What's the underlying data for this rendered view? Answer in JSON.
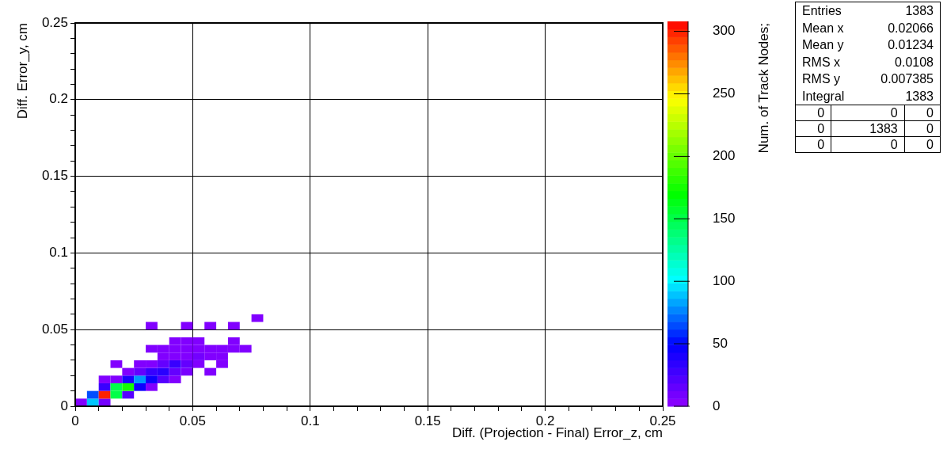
{
  "chart_data": {
    "type": "scatter",
    "xlabel": "Diff. (Projection - Final) Error_z, cm",
    "ylabel": "Diff. Error_y, cm",
    "clabel": "Num. of Track Nodes;",
    "marker": "square",
    "x": [
      0.0025,
      0.0075,
      0.0125,
      0.0075,
      0.0125,
      0.0175,
      0.0225,
      0.0125,
      0.0175,
      0.0225,
      0.0275,
      0.0325,
      0.0125,
      0.0175,
      0.0225,
      0.0275,
      0.0325,
      0.0375,
      0.0425,
      0.0225,
      0.0275,
      0.0325,
      0.0375,
      0.0425,
      0.0475,
      0.0575,
      0.0175,
      0.0275,
      0.0325,
      0.0375,
      0.0425,
      0.0475,
      0.0525,
      0.0625,
      0.0375,
      0.0425,
      0.0475,
      0.0525,
      0.0575,
      0.0625,
      0.0325,
      0.0375,
      0.0425,
      0.0475,
      0.0525,
      0.0575,
      0.0625,
      0.0675,
      0.0725,
      0.0425,
      0.0475,
      0.0525,
      0.0675,
      0.0325,
      0.0475,
      0.0575,
      0.0675,
      0.0775
    ],
    "values": [
      0.0025,
      0.0025,
      0.0025,
      0.0075,
      0.0075,
      0.0075,
      0.0075,
      0.0125,
      0.0125,
      0.0125,
      0.0125,
      0.0125,
      0.0175,
      0.0175,
      0.0175,
      0.0175,
      0.0175,
      0.0175,
      0.0175,
      0.0225,
      0.0225,
      0.0225,
      0.0225,
      0.0225,
      0.0225,
      0.0225,
      0.0275,
      0.0275,
      0.0275,
      0.0275,
      0.0275,
      0.0275,
      0.0275,
      0.0275,
      0.0325,
      0.0325,
      0.0325,
      0.0325,
      0.0325,
      0.0325,
      0.0375,
      0.0375,
      0.0375,
      0.0375,
      0.0375,
      0.0375,
      0.0375,
      0.0375,
      0.0375,
      0.0425,
      0.0425,
      0.0425,
      0.0425,
      0.0525,
      0.0525,
      0.0525,
      0.0525,
      0.0575
    ],
    "cvalues": [
      5,
      90,
      10,
      65,
      300,
      150,
      20,
      30,
      150,
      175,
      45,
      5,
      5,
      5,
      40,
      80,
      45,
      20,
      5,
      5,
      15,
      30,
      35,
      15,
      8,
      5,
      5,
      5,
      5,
      15,
      30,
      15,
      5,
      5,
      5,
      5,
      5,
      10,
      5,
      5,
      5,
      5,
      5,
      5,
      5,
      5,
      5,
      5,
      5,
      5,
      5,
      5,
      5,
      5,
      5,
      5,
      5,
      5
    ],
    "xlim": [
      0,
      0.25
    ],
    "ylim": [
      0,
      0.25
    ],
    "xticks": [
      0,
      {
        "value": 0.01,
        "label": null
      },
      {
        "value": 0.02,
        "label": null
      },
      {
        "value": 0.03,
        "label": null
      },
      {
        "value": 0.04,
        "label": null
      },
      0.05,
      {
        "value": 0.06,
        "label": null
      },
      {
        "value": 0.07,
        "label": null
      },
      {
        "value": 0.08,
        "label": null
      },
      {
        "value": 0.09,
        "label": null
      },
      0.1,
      {
        "value": 0.11,
        "label": null
      },
      {
        "value": 0.12,
        "label": null
      },
      {
        "value": 0.13,
        "label": null
      },
      {
        "value": 0.14,
        "label": null
      },
      0.15,
      {
        "value": 0.16,
        "label": null
      },
      {
        "value": 0.17,
        "label": null
      },
      {
        "value": 0.18,
        "label": null
      },
      {
        "value": 0.19,
        "label": null
      },
      0.2,
      {
        "value": 0.21,
        "label": null
      },
      {
        "value": 0.22,
        "label": null
      },
      {
        "value": 0.23,
        "label": null
      },
      {
        "value": 0.24,
        "label": null
      },
      0.25
    ],
    "yticks": [
      0,
      {
        "value": 0.01,
        "label": null
      },
      {
        "value": 0.02,
        "label": null
      },
      {
        "value": 0.03,
        "label": null
      },
      {
        "value": 0.04,
        "label": null
      },
      0.05,
      {
        "value": 0.06,
        "label": null
      },
      {
        "value": 0.07,
        "label": null
      },
      {
        "value": 0.08,
        "label": null
      },
      {
        "value": 0.09,
        "label": null
      },
      0.1,
      {
        "value": 0.11,
        "label": null
      },
      {
        "value": 0.12,
        "label": null
      },
      {
        "value": 0.13,
        "label": null
      },
      {
        "value": 0.14,
        "label": null
      },
      0.15,
      {
        "value": 0.16,
        "label": null
      },
      {
        "value": 0.17,
        "label": null
      },
      {
        "value": 0.18,
        "label": null
      },
      {
        "value": 0.19,
        "label": null
      },
      0.2,
      {
        "value": 0.21,
        "label": null
      },
      {
        "value": 0.22,
        "label": null
      },
      {
        "value": 0.23,
        "label": null
      },
      {
        "value": 0.24,
        "label": null
      },
      0.25
    ],
    "clim": [
      0,
      308
    ],
    "cticks": [
      0,
      50,
      100,
      150,
      200,
      250,
      300
    ],
    "grid": true,
    "annotations": [
      "Entries 1383",
      "Mean x 0.02066",
      "Mean y 0.01234",
      "RMS x 0.0108",
      "RMS y 0.007385",
      "Integral 1383",
      "0 0 0",
      "0 1383 0",
      "0 0 0"
    ]
  }
}
